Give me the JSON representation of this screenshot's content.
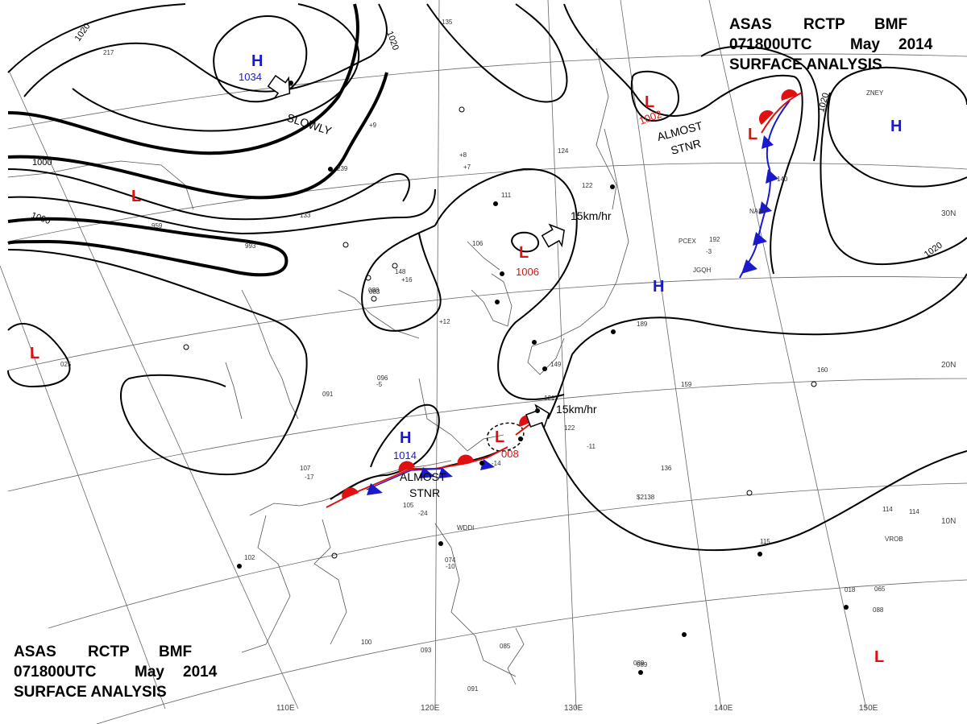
{
  "header_top": {
    "line1": [
      "ASAS",
      "RCTP",
      "BMF"
    ],
    "line2": [
      "071800UTC",
      "May",
      "2014"
    ],
    "line3": "SURFACE  ANALYSIS"
  },
  "header_bottom": {
    "line1": [
      "ASAS",
      "RCTP",
      "BMF"
    ],
    "line2": [
      "071800UTC",
      "May",
      "2014"
    ],
    "line3": "SURFACE  ANALYSIS"
  },
  "lon_labels": [
    "110E",
    "120E",
    "130E",
    "140E",
    "150E"
  ],
  "lat_labels": [
    "30N",
    "20N",
    "10N"
  ],
  "isobar_labels": [
    "1020",
    "1020",
    "1000",
    "1000",
    "1020",
    "1020"
  ],
  "pressure_systems": [
    {
      "type": "H",
      "value": "1034",
      "color": "#1a1acc"
    },
    {
      "type": "L",
      "value": "1002",
      "color": "#e01010"
    },
    {
      "type": "L",
      "value": "",
      "color": "#e01010"
    },
    {
      "type": "H",
      "value": "",
      "color": "#1a1acc"
    },
    {
      "type": "L",
      "value": "",
      "color": "#e01010"
    },
    {
      "type": "L",
      "value": "1006",
      "color": "#e01010"
    },
    {
      "type": "H",
      "value": "",
      "color": "#1a1acc"
    },
    {
      "type": "L",
      "value": "",
      "color": "#e01010"
    },
    {
      "type": "H",
      "value": "1014",
      "color": "#1a1acc"
    },
    {
      "type": "L",
      "value": "008",
      "color": "#e01010"
    },
    {
      "type": "L",
      "value": "",
      "color": "#e01010"
    }
  ],
  "annotations": [
    "SLOWLY",
    "ALMOST",
    "STNR",
    "15km/hr",
    "15km/hr",
    "ALMOST",
    "STNR"
  ],
  "station_codes": [
    "PCEX",
    "JGQH",
    "NARY",
    "ZNEY",
    "VROB",
    "WDDI",
    "$2138"
  ],
  "station_values": [
    "135",
    "239",
    "133",
    "993",
    "083",
    "148",
    "106",
    "111",
    "124",
    "122",
    "114",
    "192",
    "159",
    "160",
    "136",
    "115",
    "107",
    "102",
    "105",
    "074",
    "096",
    "091",
    "100",
    "093",
    "085",
    "089",
    "088",
    "114",
    "217",
    "959",
    "025",
    "018",
    "088",
    "089",
    "065",
    "140",
    "189",
    "149",
    "121",
    "122",
    "091",
    "+16",
    "+12",
    "+8",
    "+9",
    "+7",
    "-3",
    "-17",
    "-24",
    "-10",
    "-14",
    "-11",
    "-5"
  ],
  "colors": {
    "warm_front": "#e01010",
    "cold_front": "#1a1acc",
    "isobar": "#000000",
    "coast": "#555555"
  }
}
